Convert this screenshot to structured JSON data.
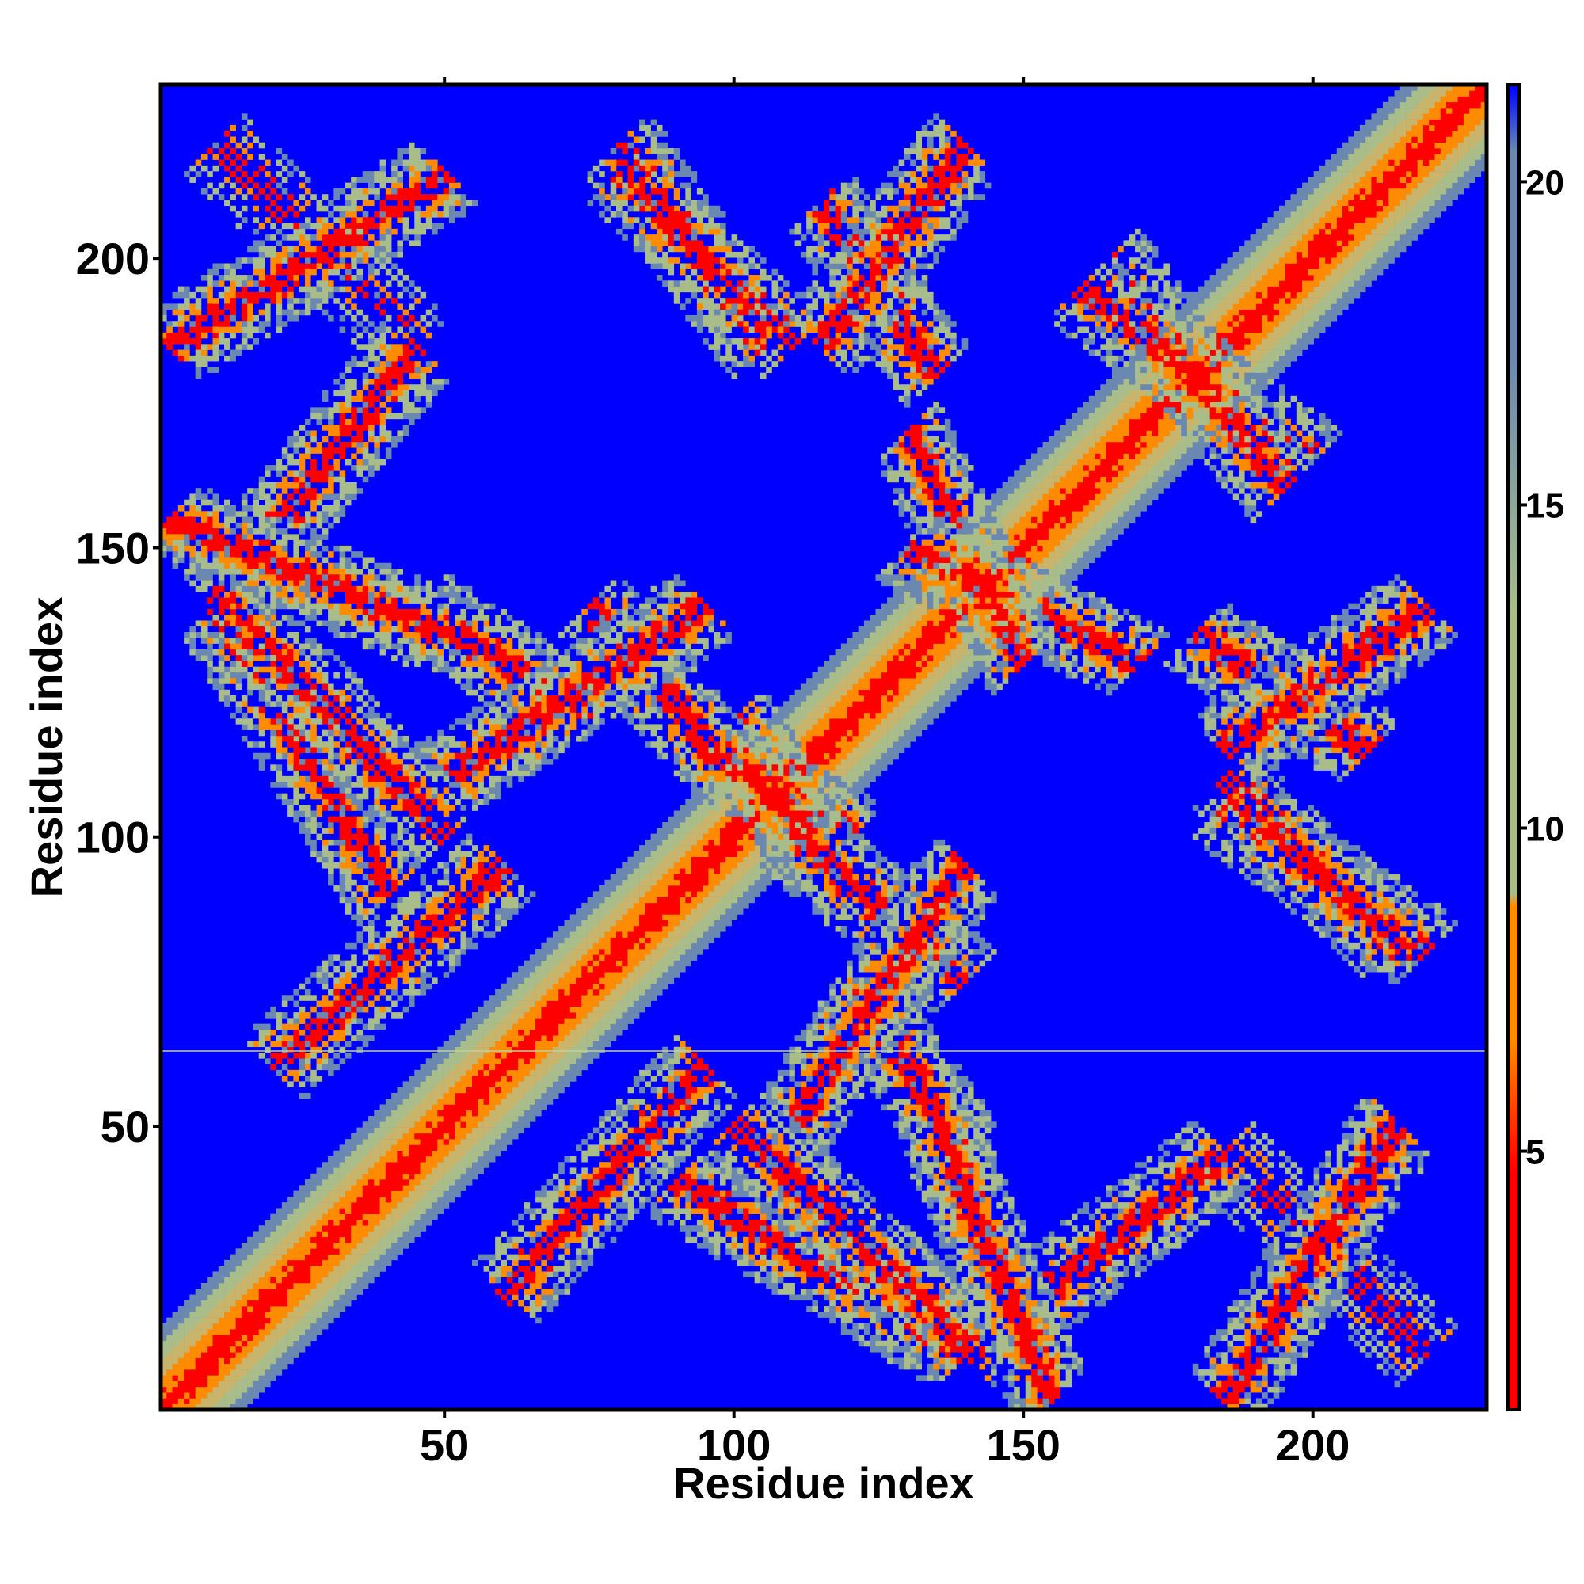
{
  "chart_data": {
    "type": "heatmap",
    "title": "",
    "xlabel": "Residue index",
    "ylabel": "Residue index",
    "xlim": [
      1,
      230
    ],
    "ylim": [
      1,
      230
    ],
    "xticks": [
      50,
      100,
      150,
      200
    ],
    "yticks": [
      50,
      100,
      150,
      200
    ],
    "colorbar": {
      "range": [
        1,
        21.5
      ],
      "ticks": [
        5,
        10,
        15,
        20
      ],
      "colors": [
        "#ff0000",
        "#ff8c00",
        "#a9bd8a",
        "#6a88b0",
        "#0000ff"
      ],
      "background_color": "#0000ff"
    },
    "grid": false,
    "structure": {
      "description_free": true,
      "diagonal_color": "#ff2000",
      "contact_bands": [
        {
          "x": [
            2,
            50
          ],
          "y": [
            185,
            215
          ]
        },
        {
          "x": [
            2,
            50
          ],
          "y": [
            155,
            135
          ]
        },
        {
          "x": [
            12,
            50
          ],
          "y": [
            140,
            100
          ]
        },
        {
          "x": [
            50,
            95
          ],
          "y": [
            110,
            140
          ]
        },
        {
          "x": [
            95,
            120
          ],
          "y": [
            115,
            100
          ]
        },
        {
          "x": [
            80,
            110
          ],
          "y": [
            215,
            185
          ]
        },
        {
          "x": [
            110,
            140
          ],
          "y": [
            100,
            75
          ]
        },
        {
          "x": [
            120,
            140
          ],
          "y": [
            75,
            45
          ]
        },
        {
          "x": [
            90,
            140
          ],
          "y": [
            40,
            10
          ]
        },
        {
          "x": [
            140,
            185
          ],
          "y": [
            10,
            45
          ]
        },
        {
          "x": [
            185,
            220
          ],
          "y": [
            45,
            10
          ]
        },
        {
          "x": [
            185,
            220
          ],
          "y": [
            105,
            80
          ]
        },
        {
          "x": [
            185,
            220
          ],
          "y": [
            115,
            140
          ]
        },
        {
          "x": [
            130,
            170
          ],
          "y": [
            150,
            130
          ]
        },
        {
          "x": [
            160,
            200
          ],
          "y": [
            195,
            165
          ]
        },
        {
          "x": [
            115,
            135
          ],
          "y": [
            210,
            180
          ]
        },
        {
          "x": [
            20,
            60
          ],
          "y": [
            60,
            95
          ]
        }
      ]
    }
  }
}
